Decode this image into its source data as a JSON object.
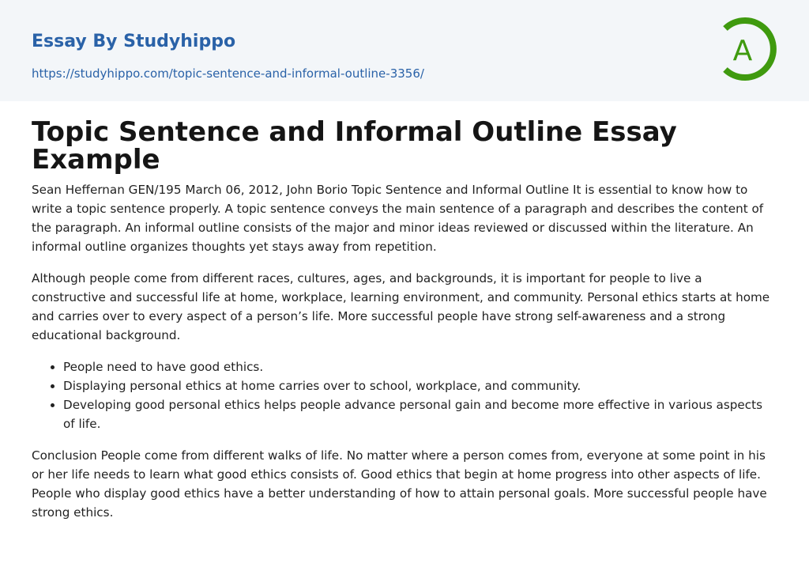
{
  "header": {
    "site_title": "Essay By Studyhippo",
    "url": "https://studyhippo.com/topic-sentence-and-informal-outline-3356/",
    "logo_letter": "A",
    "logo_color": "#3f9a0f"
  },
  "article": {
    "title": "Topic Sentence and Informal Outline Essay Example",
    "paragraphs": [
      "Sean Heffernan GEN/195 March 06, 2012, John Borio Topic Sentence and Informal Outline It is essential to know how to write a topic sentence properly. A topic sentence conveys the main sentence of a paragraph and describes the content of the paragraph. An informal outline consists of the major and minor ideas reviewed or discussed within the literature. An informal outline organizes thoughts yet stays away from repetition.",
      "Although people come from different races, cultures, ages, and backgrounds, it is important for people to live a constructive and successful life at home, workplace, learning environment, and community. Personal ethics starts at home and carries over to every aspect of a person’s life. More successful people have strong self-awareness and a strong educational background."
    ],
    "bullets": [
      "People need to have good ethics.",
      "Displaying personal ethics at home carries over to school, workplace, and community.",
      "Developing good personal ethics helps people advance personal gain and become more effective in various aspects of life."
    ],
    "conclusion": "Conclusion People come from different walks of life. No matter where a person comes from, everyone at some point in his or her life needs to learn what good ethics consists of. Good ethics that begin at home progress into other aspects of life. People who display good ethics have a better understanding of how to attain personal goals. More successful people have strong ethics."
  }
}
